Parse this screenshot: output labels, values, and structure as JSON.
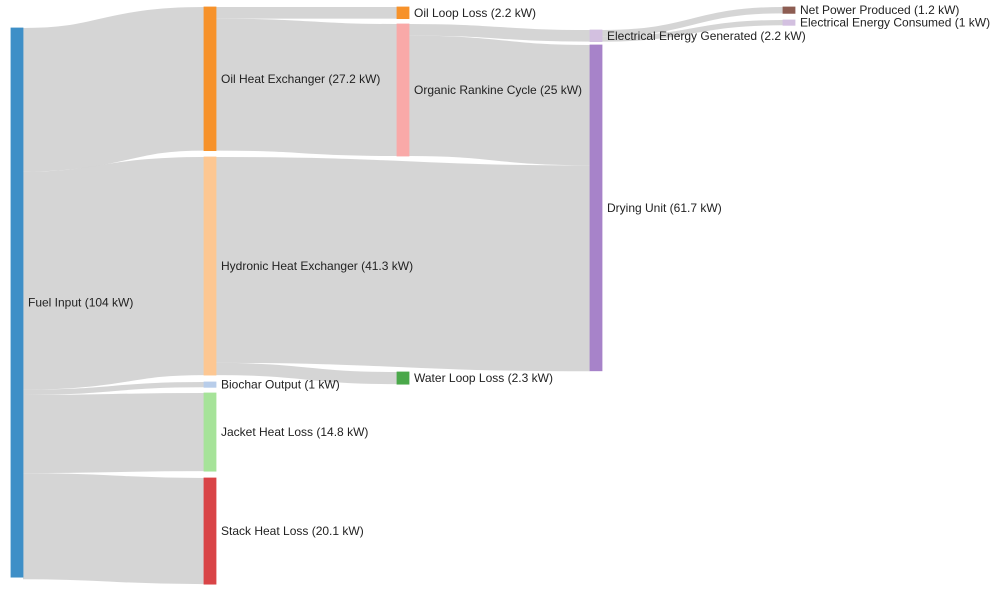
{
  "chart_data": {
    "type": "sankey",
    "unit": "kW",
    "nodes": [
      {
        "id": "fuel",
        "label": "Fuel Input (104 kW)",
        "column": 0,
        "color": "#3e8fc7",
        "value": 104
      },
      {
        "id": "oilhx",
        "label": "Oil Heat Exchanger (27.2 kW)",
        "column": 1,
        "color": "#f7922a",
        "value": 27.2
      },
      {
        "id": "hydhx",
        "label": "Hydronic Heat Exchanger (41.3 kW)",
        "column": 1,
        "color": "#fdc792",
        "value": 41.3
      },
      {
        "id": "biochar",
        "label": "Biochar Output (1 kW)",
        "column": 1,
        "color": "#b8cdea",
        "value": 1
      },
      {
        "id": "jacket",
        "label": "Jacket Heat Loss (14.8 kW)",
        "column": 1,
        "color": "#a6e399",
        "value": 14.8
      },
      {
        "id": "stack",
        "label": "Stack Heat Loss (20.1 kW)",
        "column": 1,
        "color": "#d94447",
        "value": 20.1
      },
      {
        "id": "oilloss",
        "label": "Oil Loop Loss (2.2 kW)",
        "column": 2,
        "color": "#f7922a",
        "value": 2.2
      },
      {
        "id": "orc",
        "label": "Organic Rankine Cycle (25 kW)",
        "column": 2,
        "color": "#f9a9a8",
        "value": 25
      },
      {
        "id": "waterloss",
        "label": "Water Loop Loss (2.3 kW)",
        "column": 2,
        "color": "#4aa84a",
        "value": 2.3
      },
      {
        "id": "elecgen",
        "label": "Electrical Energy Generated (2.2 kW)",
        "column": 3,
        "color": "#d3c0e0",
        "value": 2.2
      },
      {
        "id": "drying",
        "label": "Drying Unit (61.7 kW)",
        "column": 3,
        "color": "#a783c9",
        "value": 61.7
      },
      {
        "id": "netpower",
        "label": "Net Power Produced (1.2 kW)",
        "column": 4,
        "color": "#8d5d52",
        "value": 1.2
      },
      {
        "id": "elecuse",
        "label": "Electrical Energy Consumed (1 kW)",
        "column": 4,
        "color": "#d3c0e0",
        "value": 1
      }
    ],
    "links": [
      {
        "source": "fuel",
        "target": "oilhx",
        "value": 27.2
      },
      {
        "source": "fuel",
        "target": "hydhx",
        "value": 41.3
      },
      {
        "source": "fuel",
        "target": "biochar",
        "value": 1
      },
      {
        "source": "fuel",
        "target": "jacket",
        "value": 14.8
      },
      {
        "source": "fuel",
        "target": "stack",
        "value": 20.1
      },
      {
        "source": "oilhx",
        "target": "oilloss",
        "value": 2.2
      },
      {
        "source": "oilhx",
        "target": "orc",
        "value": 25
      },
      {
        "source": "orc",
        "target": "elecgen",
        "value": 2.2
      },
      {
        "source": "orc",
        "target": "drying",
        "value": 22.8
      },
      {
        "source": "hydhx",
        "target": "drying",
        "value": 39
      },
      {
        "source": "hydhx",
        "target": "waterloss",
        "value": 2.3
      },
      {
        "source": "elecgen",
        "target": "netpower",
        "value": 1.2
      },
      {
        "source": "elecgen",
        "target": "elecuse",
        "value": 1
      }
    ]
  }
}
